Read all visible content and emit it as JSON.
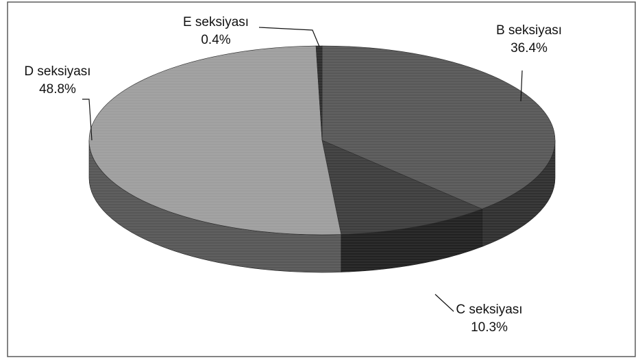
{
  "chart_data": {
    "type": "pie",
    "style": "3d",
    "title": "",
    "slices": [
      {
        "label": "B seksiyası",
        "percent_label": "36.4%",
        "value": 36.4,
        "color": "#585858"
      },
      {
        "label": "C seksiyası",
        "percent_label": "10.3%",
        "value": 10.3,
        "color": "#3e3e3e"
      },
      {
        "label": "D seksiyası",
        "percent_label": "48.8%",
        "value": 48.8,
        "color": "#9e9e9e"
      },
      {
        "label": "E seksiyası",
        "percent_label": "0.4%",
        "value": 0.4,
        "color": "#2e2e2e"
      }
    ],
    "legend": "none",
    "border": true
  }
}
